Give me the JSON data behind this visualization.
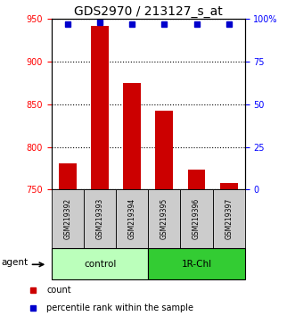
{
  "title": "GDS2970 / 213127_s_at",
  "samples": [
    "GSM219392",
    "GSM219393",
    "GSM219394",
    "GSM219395",
    "GSM219396",
    "GSM219397"
  ],
  "counts": [
    781,
    942,
    875,
    843,
    773,
    758
  ],
  "percentile_ranks": [
    97,
    98,
    97,
    97,
    97,
    97
  ],
  "ymin": 750,
  "ymax": 950,
  "y_ticks": [
    750,
    800,
    850,
    900,
    950
  ],
  "y2min": 0,
  "y2max": 100,
  "y2_ticks": [
    0,
    25,
    50,
    75,
    100
  ],
  "y2_tick_labels": [
    "0",
    "25",
    "50",
    "75",
    "100%"
  ],
  "bar_color": "#cc0000",
  "dot_color": "#0000cc",
  "groups": [
    {
      "label": "control",
      "n": 3,
      "color": "#bbffbb"
    },
    {
      "label": "1R-Chl",
      "n": 3,
      "color": "#33cc33"
    }
  ],
  "xlabel_bg": "#cccccc",
  "agent_label": "agent",
  "legend_count_label": "count",
  "legend_pct_label": "percentile rank within the sample",
  "title_fontsize": 10,
  "tick_fontsize": 7,
  "label_fontsize": 7
}
